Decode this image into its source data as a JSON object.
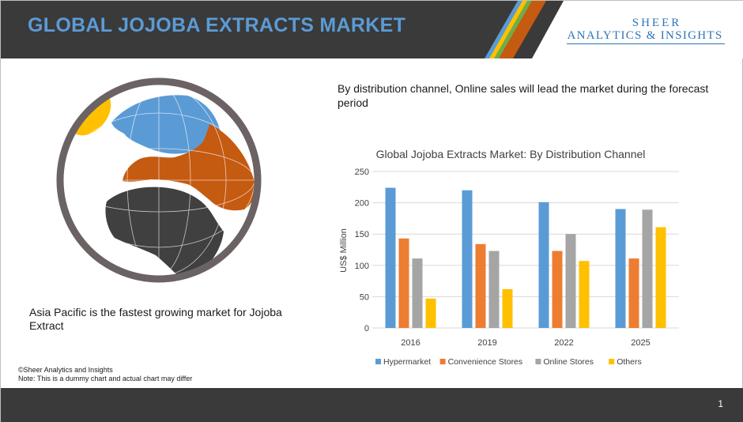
{
  "header": {
    "title": "GLOBAL JOJOBA EXTRACTS MARKET",
    "logo_line1": "SHEER",
    "logo_line2": "ANALYTICS & INSIGHTS"
  },
  "left_text": "Asia Pacific is the fastest growing market for Jojoba Extract",
  "right_text": "By distribution channel, Online sales will lead the market during the forecast period",
  "copyright": "©Sheer Analytics and Insights",
  "note": "Note: This is a dummy chart and actual chart may differ",
  "page_number": "1",
  "colors": {
    "header_bg": "#3a3a3a",
    "title": "#5b9bd5",
    "logo": "#2e75b6",
    "globe_europe": "#c55a11",
    "globe_africa": "#404040",
    "globe_north": "#5b9bd5",
    "globe_ring": "#6b6363"
  },
  "chart_data": {
    "type": "bar",
    "title": "Global Jojoba Extracts Market: By Distribution Channel",
    "ylabel": "US$ Million",
    "xlabel": "",
    "categories": [
      "2016",
      "2019",
      "2022",
      "2025"
    ],
    "ylim": [
      0,
      250
    ],
    "yticks": [
      0,
      50,
      100,
      150,
      200,
      250
    ],
    "grid": true,
    "legend_position": "bottom",
    "series": [
      {
        "name": "Hypermarket",
        "color": "#5b9bd5",
        "values": [
          224,
          220,
          201,
          190
        ]
      },
      {
        "name": "Convenience Stores",
        "color": "#ed7d31",
        "values": [
          143,
          134,
          123,
          111
        ]
      },
      {
        "name": "Online Stores",
        "color": "#a5a5a5",
        "values": [
          111,
          123,
          150,
          189
        ]
      },
      {
        "name": "Others",
        "color": "#ffc000",
        "values": [
          47,
          62,
          107,
          161
        ]
      }
    ]
  }
}
